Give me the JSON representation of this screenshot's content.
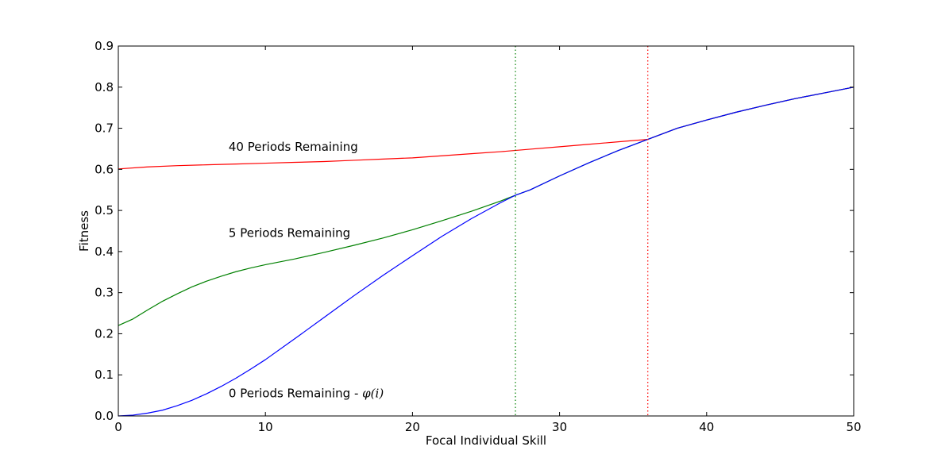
{
  "chart_data": {
    "type": "line",
    "title": "",
    "xlabel": "Focal Individual Skill",
    "ylabel": "Fitness",
    "xlim": [
      0,
      50
    ],
    "ylim": [
      0,
      0.9
    ],
    "xticks": [
      0,
      10,
      20,
      30,
      40,
      50
    ],
    "xtick_labels": [
      "0",
      "10",
      "20",
      "30",
      "40",
      "50"
    ],
    "yticks": [
      0.0,
      0.1,
      0.2,
      0.3,
      0.4,
      0.5,
      0.6,
      0.7,
      0.8,
      0.9
    ],
    "ytick_labels": [
      "0.0",
      "0.1",
      "0.2",
      "0.3",
      "0.4",
      "0.5",
      "0.6",
      "0.7",
      "0.8",
      "0.9"
    ],
    "grid": false,
    "legend": "none",
    "series": [
      {
        "color": "#ff0000",
        "x": [
          0,
          2,
          4,
          6,
          8,
          10,
          12,
          14,
          16,
          18,
          20,
          22,
          24,
          26,
          28,
          30,
          32,
          34,
          36,
          38,
          40,
          42,
          44,
          46,
          48,
          50
        ],
        "y": [
          0.601,
          0.606,
          0.609,
          0.611,
          0.613,
          0.615,
          0.617,
          0.619,
          0.622,
          0.625,
          0.628,
          0.633,
          0.638,
          0.643,
          0.649,
          0.655,
          0.661,
          0.667,
          0.673,
          0.7,
          0.72,
          0.739,
          0.756,
          0.772,
          0.786,
          0.8
        ]
      },
      {
        "color": "#008000",
        "x": [
          0,
          1,
          2,
          3,
          4,
          5,
          6,
          7,
          8,
          9,
          10,
          12,
          14,
          16,
          18,
          20,
          22,
          24,
          26,
          27,
          28,
          30,
          32,
          34,
          36,
          38,
          40,
          42,
          44,
          46,
          48,
          50
        ],
        "y": [
          0.22,
          0.236,
          0.258,
          0.279,
          0.297,
          0.314,
          0.328,
          0.34,
          0.351,
          0.36,
          0.368,
          0.382,
          0.398,
          0.415,
          0.433,
          0.453,
          0.475,
          0.498,
          0.523,
          0.537,
          0.55,
          0.584,
          0.616,
          0.646,
          0.673,
          0.7,
          0.72,
          0.739,
          0.756,
          0.772,
          0.786,
          0.8
        ]
      },
      {
        "color": "#0000ff",
        "x": [
          0,
          1,
          2,
          3,
          4,
          5,
          6,
          7,
          8,
          9,
          10,
          12,
          14,
          16,
          18,
          20,
          22,
          24,
          26,
          27,
          28,
          30,
          32,
          34,
          36,
          38,
          40,
          42,
          44,
          46,
          48,
          50
        ],
        "y": [
          0.0,
          0.002,
          0.007,
          0.014,
          0.025,
          0.038,
          0.054,
          0.072,
          0.092,
          0.114,
          0.137,
          0.188,
          0.24,
          0.292,
          0.342,
          0.39,
          0.437,
          0.48,
          0.519,
          0.537,
          0.55,
          0.584,
          0.616,
          0.646,
          0.673,
          0.7,
          0.72,
          0.739,
          0.756,
          0.772,
          0.786,
          0.8
        ]
      }
    ],
    "vlines": [
      {
        "x": 27,
        "color": "#008000",
        "style": "dotted"
      },
      {
        "x": 36,
        "color": "#ff0000",
        "style": "dotted"
      }
    ],
    "annotations": [
      {
        "text": "40 Periods Remaining",
        "x": 7.5,
        "y": 0.655
      },
      {
        "text": "5 Periods Remaining",
        "x": 7.5,
        "y": 0.445
      },
      {
        "text": "0 Periods Remaining - ",
        "math": "φ(i)",
        "x": 7.5,
        "y": 0.055
      }
    ]
  }
}
